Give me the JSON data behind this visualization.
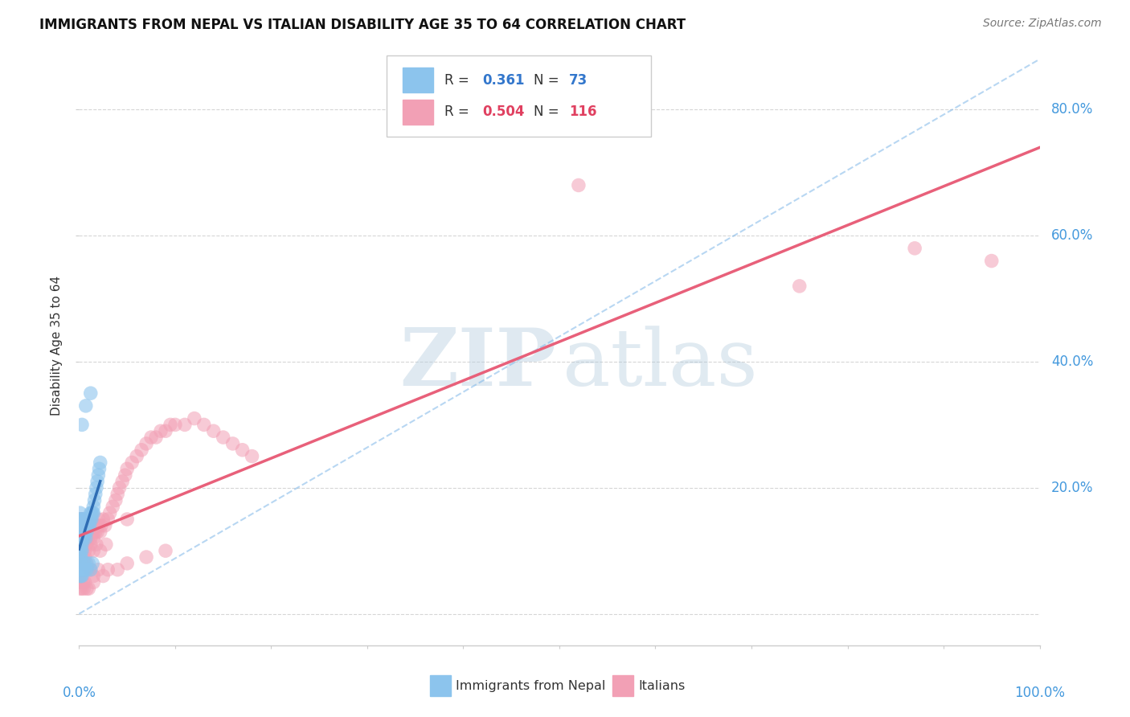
{
  "title": "IMMIGRANTS FROM NEPAL VS ITALIAN DISABILITY AGE 35 TO 64 CORRELATION CHART",
  "source": "Source: ZipAtlas.com",
  "legend_label1": "Immigrants from Nepal",
  "legend_label2": "Italians",
  "R1": "0.361",
  "N1": "73",
  "R2": "0.504",
  "N2": "116",
  "color_nepal": "#8CC4ED",
  "color_italy": "#F2A0B5",
  "color_nepal_line": "#2E6DB4",
  "color_italy_line": "#E8607A",
  "color_diag": "#7EB6E8",
  "background": "#ffffff",
  "ylabel": "Disability Age 35 to 64",
  "ytick_vals": [
    0.0,
    0.2,
    0.4,
    0.6,
    0.8
  ],
  "ytick_labels": [
    "",
    "20.0%",
    "40.0%",
    "60.0%",
    "80.0%"
  ],
  "xlim": [
    0.0,
    1.0
  ],
  "ylim": [
    -0.05,
    0.9
  ],
  "nepal_x": [
    0.001,
    0.001,
    0.001,
    0.001,
    0.001,
    0.001,
    0.001,
    0.001,
    0.001,
    0.002,
    0.002,
    0.002,
    0.002,
    0.002,
    0.002,
    0.002,
    0.003,
    0.003,
    0.003,
    0.003,
    0.003,
    0.003,
    0.004,
    0.004,
    0.004,
    0.004,
    0.005,
    0.005,
    0.005,
    0.006,
    0.006,
    0.006,
    0.007,
    0.007,
    0.008,
    0.008,
    0.009,
    0.009,
    0.01,
    0.01,
    0.011,
    0.011,
    0.012,
    0.012,
    0.013,
    0.013,
    0.014,
    0.015,
    0.015,
    0.016,
    0.017,
    0.018,
    0.019,
    0.02,
    0.021,
    0.022,
    0.001,
    0.001,
    0.002,
    0.002,
    0.003,
    0.003,
    0.004,
    0.005,
    0.006,
    0.007,
    0.008,
    0.01,
    0.012,
    0.014,
    0.003,
    0.007,
    0.012
  ],
  "nepal_y": [
    0.12,
    0.13,
    0.14,
    0.15,
    0.1,
    0.11,
    0.09,
    0.08,
    0.16,
    0.13,
    0.14,
    0.12,
    0.11,
    0.15,
    0.1,
    0.09,
    0.13,
    0.14,
    0.12,
    0.15,
    0.1,
    0.11,
    0.13,
    0.14,
    0.12,
    0.15,
    0.13,
    0.14,
    0.12,
    0.14,
    0.15,
    0.13,
    0.14,
    0.12,
    0.15,
    0.13,
    0.14,
    0.15,
    0.15,
    0.14,
    0.14,
    0.15,
    0.15,
    0.16,
    0.15,
    0.16,
    0.16,
    0.17,
    0.16,
    0.18,
    0.19,
    0.2,
    0.21,
    0.22,
    0.23,
    0.24,
    0.06,
    0.07,
    0.07,
    0.06,
    0.07,
    0.06,
    0.07,
    0.08,
    0.07,
    0.08,
    0.07,
    0.08,
    0.07,
    0.08,
    0.3,
    0.33,
    0.35
  ],
  "italy_x": [
    0.001,
    0.001,
    0.001,
    0.001,
    0.002,
    0.002,
    0.002,
    0.002,
    0.002,
    0.003,
    0.003,
    0.003,
    0.003,
    0.004,
    0.004,
    0.004,
    0.005,
    0.005,
    0.005,
    0.006,
    0.006,
    0.006,
    0.007,
    0.007,
    0.008,
    0.008,
    0.009,
    0.009,
    0.01,
    0.01,
    0.011,
    0.012,
    0.012,
    0.013,
    0.014,
    0.015,
    0.015,
    0.016,
    0.017,
    0.018,
    0.019,
    0.02,
    0.02,
    0.022,
    0.023,
    0.025,
    0.027,
    0.03,
    0.032,
    0.035,
    0.038,
    0.04,
    0.042,
    0.045,
    0.048,
    0.05,
    0.055,
    0.06,
    0.065,
    0.07,
    0.075,
    0.08,
    0.085,
    0.09,
    0.095,
    0.1,
    0.11,
    0.12,
    0.13,
    0.14,
    0.15,
    0.16,
    0.17,
    0.18,
    0.002,
    0.004,
    0.006,
    0.008,
    0.01,
    0.012,
    0.015,
    0.018,
    0.022,
    0.028,
    0.001,
    0.002,
    0.003,
    0.004,
    0.005,
    0.006,
    0.008,
    0.01,
    0.012,
    0.015,
    0.02,
    0.025,
    0.03,
    0.04,
    0.05,
    0.07,
    0.09,
    0.001,
    0.001,
    0.002,
    0.003,
    0.004,
    0.005,
    0.006,
    0.008,
    0.01,
    0.015,
    0.05,
    0.52,
    0.75,
    0.87,
    0.95
  ],
  "italy_y": [
    0.12,
    0.13,
    0.14,
    0.15,
    0.12,
    0.13,
    0.14,
    0.15,
    0.11,
    0.13,
    0.14,
    0.12,
    0.15,
    0.13,
    0.12,
    0.14,
    0.13,
    0.12,
    0.14,
    0.13,
    0.12,
    0.14,
    0.13,
    0.12,
    0.13,
    0.14,
    0.13,
    0.12,
    0.13,
    0.14,
    0.13,
    0.14,
    0.12,
    0.13,
    0.14,
    0.13,
    0.12,
    0.14,
    0.13,
    0.14,
    0.13,
    0.14,
    0.15,
    0.13,
    0.14,
    0.15,
    0.14,
    0.15,
    0.16,
    0.17,
    0.18,
    0.19,
    0.2,
    0.21,
    0.22,
    0.23,
    0.24,
    0.25,
    0.26,
    0.27,
    0.28,
    0.28,
    0.29,
    0.29,
    0.3,
    0.3,
    0.3,
    0.31,
    0.3,
    0.29,
    0.28,
    0.27,
    0.26,
    0.25,
    0.1,
    0.11,
    0.1,
    0.11,
    0.1,
    0.11,
    0.1,
    0.11,
    0.1,
    0.11,
    0.09,
    0.09,
    0.08,
    0.09,
    0.08,
    0.09,
    0.08,
    0.07,
    0.07,
    0.06,
    0.07,
    0.06,
    0.07,
    0.07,
    0.08,
    0.09,
    0.1,
    0.05,
    0.04,
    0.05,
    0.04,
    0.05,
    0.04,
    0.05,
    0.04,
    0.04,
    0.05,
    0.15,
    0.68,
    0.52,
    0.58,
    0.56
  ]
}
